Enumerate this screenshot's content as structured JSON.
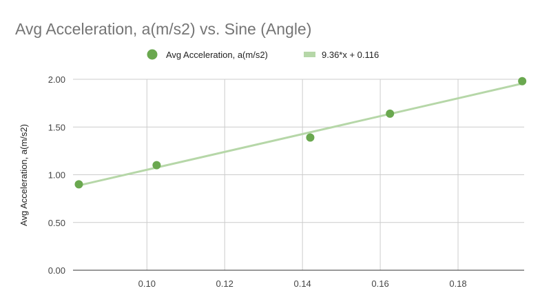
{
  "chart_data": {
    "type": "scatter",
    "title": "Avg Acceleration, a(m/s2) vs. Sine (Angle)",
    "xlabel": "",
    "ylabel": "Avg Acceleration, a(m/s2)",
    "xlim": [
      0.081,
      0.197
    ],
    "ylim": [
      0,
      2
    ],
    "x_ticks": [
      "0.10",
      "0.12",
      "0.14",
      "0.16",
      "0.18"
    ],
    "x_tick_values": [
      0.1,
      0.12,
      0.14,
      0.16,
      0.18
    ],
    "y_ticks": [
      "0.00",
      "0.50",
      "1.00",
      "1.50",
      "2.00"
    ],
    "y_tick_values": [
      0,
      0.5,
      1.0,
      1.5,
      2.0
    ],
    "grid": true,
    "legend_position": "top",
    "series": [
      {
        "name": "Avg Acceleration, a(m/s2)",
        "color": "#6aa84f",
        "points": [
          {
            "x": 0.0825,
            "y": 0.9
          },
          {
            "x": 0.1025,
            "y": 1.1
          },
          {
            "x": 0.142,
            "y": 1.39
          },
          {
            "x": 0.1625,
            "y": 1.64
          },
          {
            "x": 0.1965,
            "y": 1.98
          }
        ]
      }
    ],
    "trendline": {
      "label": "9.36*x + 0.116",
      "slope": 9.36,
      "intercept": 0.116,
      "color": "#b6d7a8"
    }
  }
}
